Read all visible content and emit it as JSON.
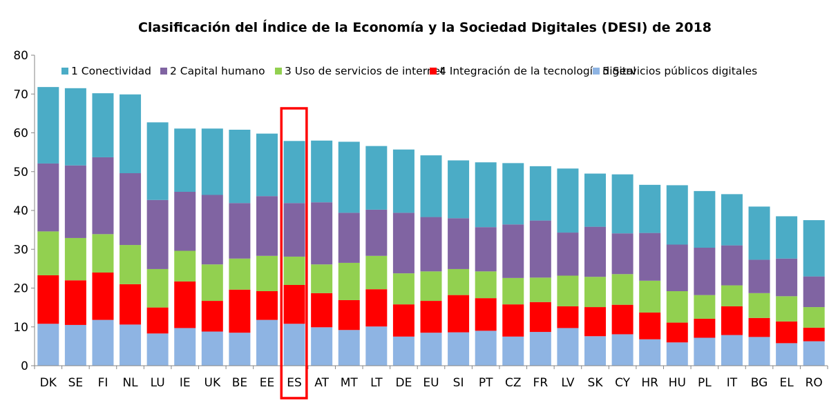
{
  "chart_data": {
    "type": "bar",
    "stacked": true,
    "title": "Clasificación del Índice de la Economía y la Sociedad Digitales (DESI) de 2018",
    "xlabel": "",
    "ylabel": "",
    "ylim": [
      0,
      80
    ],
    "yticks": [
      "0",
      "10",
      "20",
      "30",
      "40",
      "50",
      "60",
      "70",
      "80"
    ],
    "grid": false,
    "legend_position": "top",
    "highlight_category": "ES",
    "highlight_color": "#ff0000",
    "categories": [
      "DK",
      "SE",
      "FI",
      "NL",
      "LU",
      "IE",
      "UK",
      "BE",
      "EE",
      "ES",
      "AT",
      "MT",
      "LT",
      "DE",
      "EU",
      "SI",
      "PT",
      "CZ",
      "FR",
      "LV",
      "SK",
      "CY",
      "HR",
      "HU",
      "PL",
      "IT",
      "BG",
      "EL",
      "RO"
    ],
    "series": [
      {
        "name": "5 Servicios públicos digitales",
        "color": "#8eb4e3",
        "values": [
          10.8,
          10.5,
          11.8,
          10.6,
          8.3,
          9.7,
          8.8,
          8.5,
          11.8,
          10.8,
          9.9,
          9.2,
          10.1,
          7.5,
          8.5,
          8.6,
          9.0,
          7.5,
          8.7,
          9.7,
          7.6,
          8.1,
          6.8,
          6.0,
          7.2,
          7.9,
          7.4,
          5.8,
          6.3
        ]
      },
      {
        "name": "4 Integración de la tecnología digital",
        "color": "#ff0000",
        "values": [
          12.5,
          11.5,
          12.2,
          10.4,
          6.7,
          12.0,
          7.9,
          11.1,
          7.4,
          10.0,
          8.8,
          7.7,
          9.6,
          8.3,
          8.2,
          9.6,
          8.4,
          8.3,
          7.7,
          5.6,
          7.5,
          7.6,
          6.9,
          5.1,
          4.9,
          7.4,
          4.9,
          5.6,
          3.5
        ]
      },
      {
        "name": "3 Uso de servicios de internet",
        "color": "#92d050",
        "values": [
          11.3,
          10.9,
          9.9,
          10.1,
          9.9,
          7.9,
          9.4,
          8.0,
          9.1,
          7.3,
          7.4,
          9.6,
          8.6,
          8.0,
          7.6,
          6.7,
          6.9,
          6.8,
          6.3,
          7.9,
          7.8,
          7.9,
          8.2,
          8.1,
          6.1,
          5.4,
          6.4,
          6.5,
          5.3
        ]
      },
      {
        "name": "2 Capital humano",
        "color": "#8064a2",
        "values": [
          17.5,
          18.7,
          19.8,
          18.5,
          17.8,
          15.2,
          17.9,
          14.3,
          15.4,
          13.8,
          16.0,
          12.9,
          11.9,
          15.6,
          14.0,
          13.1,
          11.4,
          13.8,
          14.7,
          11.1,
          12.9,
          10.5,
          12.3,
          12.0,
          12.2,
          10.3,
          8.6,
          9.7,
          7.9
        ]
      },
      {
        "name": "1 Conectividad",
        "color": "#4bacc6",
        "values": [
          19.7,
          19.9,
          16.5,
          20.3,
          20.0,
          16.3,
          17.1,
          18.9,
          16.1,
          16.0,
          15.9,
          18.3,
          16.4,
          16.3,
          15.9,
          14.9,
          16.7,
          15.8,
          14.0,
          16.5,
          13.7,
          15.2,
          12.4,
          15.3,
          14.6,
          13.2,
          13.7,
          10.9,
          14.5
        ]
      }
    ]
  }
}
